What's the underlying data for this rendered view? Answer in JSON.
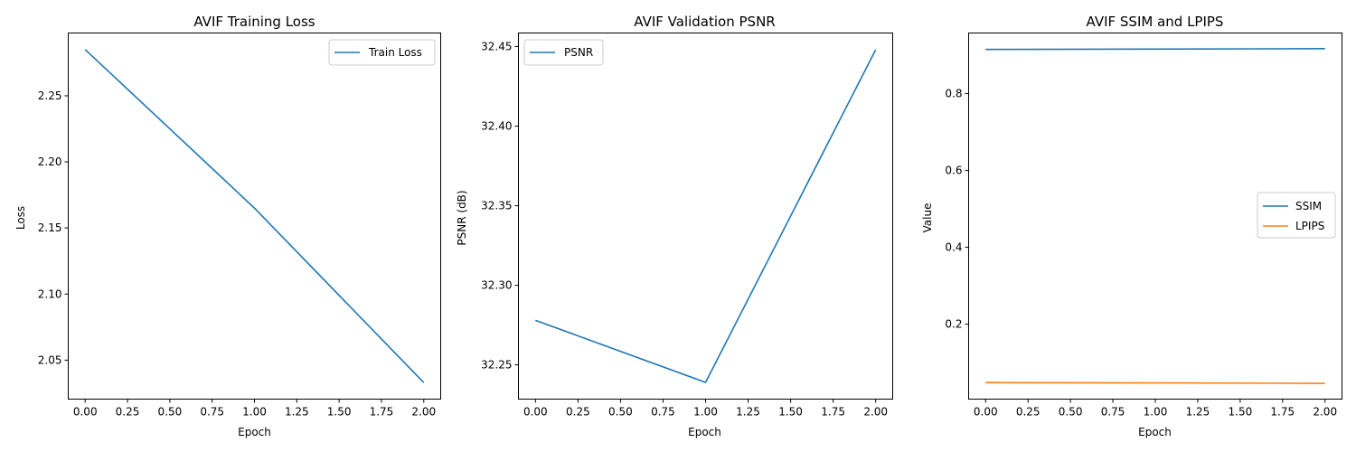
{
  "chart_data": [
    {
      "type": "line",
      "title": "AVIF Training Loss",
      "xlabel": "Epoch",
      "ylabel": "Loss",
      "xlim": [
        -0.1,
        2.1
      ],
      "ylim": [
        2.0205,
        2.2975
      ],
      "xticks": [
        0.0,
        0.25,
        0.5,
        0.75,
        1.0,
        1.25,
        1.5,
        1.75,
        2.0
      ],
      "xtick_labels": [
        "0.00",
        "0.25",
        "0.50",
        "0.75",
        "1.00",
        "1.25",
        "1.50",
        "1.75",
        "2.00"
      ],
      "yticks": [
        2.05,
        2.1,
        2.15,
        2.2,
        2.25
      ],
      "ytick_labels": [
        "2.05",
        "2.10",
        "2.15",
        "2.20",
        "2.25"
      ],
      "legend": "top-right",
      "grid": false,
      "series": [
        {
          "name": "Train Loss",
          "color": "#1f77b4",
          "x": [
            0,
            1,
            2
          ],
          "y": [
            2.285,
            2.165,
            2.033
          ]
        }
      ]
    },
    {
      "type": "line",
      "title": "AVIF Validation PSNR",
      "xlabel": "Epoch",
      "ylabel": "PSNR (dB)",
      "xlim": [
        -0.1,
        2.1
      ],
      "ylim": [
        32.2285,
        32.4585
      ],
      "xticks": [
        0.0,
        0.25,
        0.5,
        0.75,
        1.0,
        1.25,
        1.5,
        1.75,
        2.0
      ],
      "xtick_labels": [
        "0.00",
        "0.25",
        "0.50",
        "0.75",
        "1.00",
        "1.25",
        "1.50",
        "1.75",
        "2.00"
      ],
      "yticks": [
        32.25,
        32.3,
        32.35,
        32.4,
        32.45
      ],
      "ytick_labels": [
        "32.25",
        "32.30",
        "32.35",
        "32.40",
        "32.45"
      ],
      "legend": "top-left",
      "grid": false,
      "series": [
        {
          "name": "PSNR",
          "color": "#1f77b4",
          "x": [
            0,
            1,
            2
          ],
          "y": [
            32.278,
            32.239,
            32.448
          ]
        }
      ]
    },
    {
      "type": "line",
      "title": "AVIF SSIM and LPIPS",
      "xlabel": "Epoch",
      "ylabel": "Value",
      "xlim": [
        -0.1,
        2.1
      ],
      "ylim": [
        0.0049,
        0.9578
      ],
      "xticks": [
        0.0,
        0.25,
        0.5,
        0.75,
        1.0,
        1.25,
        1.5,
        1.75,
        2.0
      ],
      "xtick_labels": [
        "0.00",
        "0.25",
        "0.50",
        "0.75",
        "1.00",
        "1.25",
        "1.50",
        "1.75",
        "2.00"
      ],
      "yticks": [
        0.2,
        0.4,
        0.6,
        0.8
      ],
      "ytick_labels": [
        "0.2",
        "0.4",
        "0.6",
        "0.8"
      ],
      "legend": "center-right",
      "grid": false,
      "series": [
        {
          "name": "SSIM",
          "color": "#1f77b4",
          "x": [
            0,
            1,
            2
          ],
          "y": [
            0.915,
            0.916,
            0.917
          ]
        },
        {
          "name": "LPIPS",
          "color": "#ff7f0e",
          "x": [
            0,
            1,
            2
          ],
          "y": [
            0.048,
            0.047,
            0.046
          ]
        }
      ]
    }
  ]
}
